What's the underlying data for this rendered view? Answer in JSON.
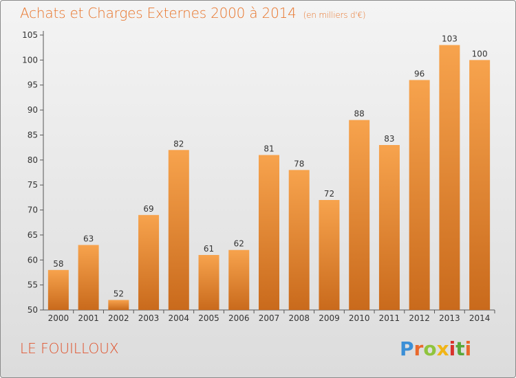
{
  "title": "Achats et Charges Externes 2000 à 2014",
  "unit": "(en milliers d'€)",
  "place": "LE FOUILLOUX",
  "logo": {
    "text": "Proxiti",
    "colors": [
      "#3b8fd6",
      "#e9692c",
      "#8fc43d",
      "#f1b516",
      "#d8322b",
      "#5aa83a",
      "#e9692c"
    ]
  },
  "colors": {
    "bar_top": "#f7a34d",
    "bar_bottom": "#c96a1c",
    "title": "#e8742a",
    "place": "#e0512a"
  },
  "chart_data": {
    "type": "bar",
    "categories": [
      "2000",
      "2001",
      "2002",
      "2003",
      "2004",
      "2005",
      "2006",
      "2007",
      "2008",
      "2009",
      "2010",
      "2011",
      "2012",
      "2013",
      "2014"
    ],
    "values": [
      58,
      63,
      52,
      69,
      82,
      61,
      62,
      81,
      78,
      72,
      88,
      83,
      96,
      103,
      100
    ],
    "ylim": [
      50,
      105
    ],
    "yticks": [
      50,
      55,
      60,
      65,
      70,
      75,
      80,
      85,
      90,
      95,
      100,
      105
    ],
    "grid": false,
    "legend": "none"
  }
}
